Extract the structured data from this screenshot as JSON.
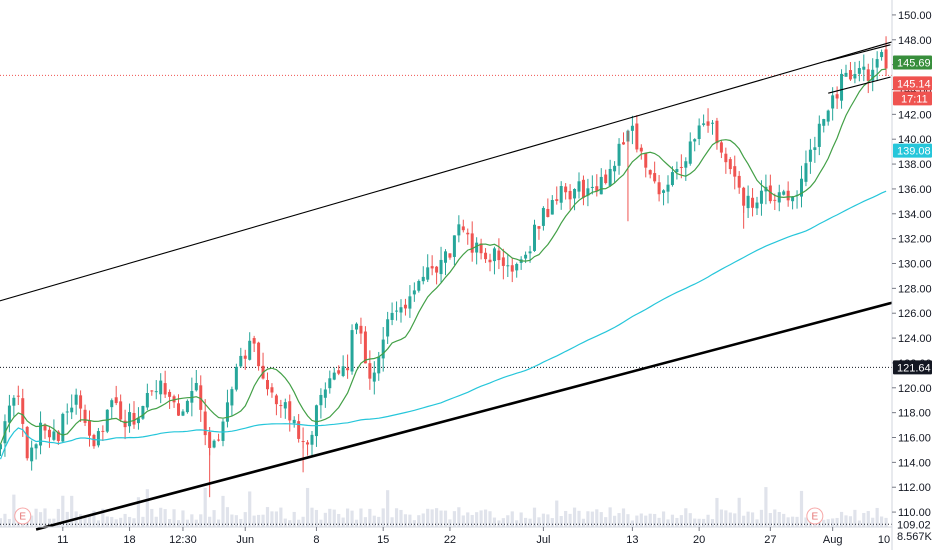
{
  "chart_data": {
    "type": "candlestick",
    "title": "",
    "xlabel": "",
    "ylabel": "",
    "ylim": [
      108.8,
      151.2
    ],
    "grid": false,
    "y_ticks": [
      110,
      112,
      114,
      116,
      118,
      120,
      122,
      124,
      126,
      128,
      130,
      132,
      134,
      136,
      138,
      140,
      142,
      144,
      146,
      148,
      150
    ],
    "y_tick_labels": [
      "110.00",
      "112.00",
      "114.00",
      "116.00",
      "118.00",
      "120.00",
      "122.00",
      "124.00",
      "126.00",
      "128.00",
      "130.00",
      "132.00",
      "134.00",
      "136.00",
      "138.00",
      "140.00",
      "142.00",
      "144.00",
      "146.00",
      "148.00",
      "150.00"
    ],
    "x_ticks": [
      {
        "label": "11",
        "bar": 14
      },
      {
        "label": "18",
        "bar": 29
      },
      {
        "label": "12:30",
        "bar": 41
      },
      {
        "label": "Jun",
        "bar": 55
      },
      {
        "label": "8",
        "bar": 71
      },
      {
        "label": "15",
        "bar": 86
      },
      {
        "label": "22",
        "bar": 101
      },
      {
        "label": "Jul",
        "bar": 122
      },
      {
        "label": "13",
        "bar": 142
      },
      {
        "label": "20",
        "bar": 157
      },
      {
        "label": "27",
        "bar": 173
      },
      {
        "label": "Aug",
        "bar": 187
      },
      {
        "label": "10",
        "bar": 202
      }
    ],
    "bars_visible": 200,
    "close_anchors": [
      [
        0,
        116.2
      ],
      [
        4,
        119.5
      ],
      [
        6,
        113.8
      ],
      [
        9,
        117.2
      ],
      [
        13,
        116.3
      ],
      [
        17,
        119.8
      ],
      [
        21,
        115.5
      ],
      [
        25,
        118.6
      ],
      [
        28,
        117.0
      ],
      [
        32,
        118.2
      ],
      [
        36,
        120.8
      ],
      [
        40,
        118.0
      ],
      [
        44,
        120.2
      ],
      [
        47,
        114.8
      ],
      [
        49,
        116.0
      ],
      [
        52,
        120.5
      ],
      [
        56,
        123.8
      ],
      [
        59,
        121.0
      ],
      [
        62,
        119.2
      ],
      [
        66,
        117.0
      ],
      [
        69,
        115.8
      ],
      [
        72,
        119.0
      ],
      [
        75,
        120.5
      ],
      [
        78,
        122.2
      ],
      [
        80,
        125.5
      ],
      [
        83,
        121.0
      ],
      [
        85,
        122.5
      ],
      [
        87,
        126.0
      ],
      [
        90,
        125.8
      ],
      [
        93,
        128.0
      ],
      [
        97,
        129.2
      ],
      [
        100,
        130.5
      ],
      [
        104,
        133.0
      ],
      [
        107,
        131.0
      ],
      [
        111,
        130.5
      ],
      [
        114,
        129.6
      ],
      [
        118,
        131.0
      ],
      [
        122,
        134.0
      ],
      [
        126,
        135.5
      ],
      [
        130,
        136.0
      ],
      [
        134,
        135.8
      ],
      [
        137,
        137.5
      ],
      [
        140,
        140.2
      ],
      [
        142,
        141.0
      ],
      [
        145,
        137.5
      ],
      [
        148,
        136.0
      ],
      [
        151,
        137.5
      ],
      [
        154,
        138.5
      ],
      [
        157,
        140.6
      ],
      [
        160,
        141.0
      ],
      [
        163,
        138.0
      ],
      [
        166,
        135.5
      ],
      [
        169,
        134.5
      ],
      [
        172,
        135.5
      ],
      [
        175,
        135.0
      ],
      [
        178,
        135.6
      ],
      [
        181,
        137.5
      ],
      [
        184,
        140.5
      ],
      [
        187,
        143.5
      ],
      [
        190,
        145.0
      ],
      [
        193,
        146.0
      ],
      [
        196,
        145.0
      ],
      [
        198,
        146.5
      ],
      [
        199,
        145.69
      ]
    ],
    "last_price": 145.69,
    "price_line_level": 145.14,
    "levels": [
      {
        "value": 145.69,
        "label": "145.69",
        "color": "#388e3c"
      },
      {
        "value": 145.14,
        "label": "145.14",
        "color": "#ef5350"
      },
      {
        "value": 139.08,
        "label": "139.08",
        "color": "#26c6da"
      },
      {
        "value": 121.64,
        "label": "121.64",
        "color": "#131722"
      },
      {
        "value": 109.02,
        "label": "109.02",
        "color": "#131722"
      },
      {
        "value": 108.9,
        "label": "8.567K",
        "color": "#131722"
      }
    ],
    "countdown": "17:11",
    "upper_channel": {
      "bar_start": -2,
      "price_start": 126.8,
      "bar_end": 202,
      "price_end": 148.0
    },
    "lower_channel": {
      "bar_start": 8,
      "price_start": 108.6,
      "bar_end": 202,
      "price_end": 127.0
    },
    "short_channel_top": {
      "bar_start": 186,
      "price_start": 146.3,
      "bar_end": 200,
      "price_end": 147.6
    },
    "short_channel_bottom": {
      "bar_start": 186,
      "price_start": 143.7,
      "bar_end": 200,
      "price_end": 145.0
    },
    "moving_averages": [
      {
        "period": 10,
        "color": "#43a047"
      },
      {
        "period": 100,
        "color": "#26c6da"
      }
    ],
    "events": [
      {
        "label": "E",
        "bar": 5
      },
      {
        "label": "E",
        "bar": 183
      }
    ],
    "colors": {
      "up": "#26a69a",
      "down": "#ef5350",
      "channel": "#000000",
      "volume": "#e0e3eb",
      "price_line": "#ef5350",
      "level_line": "#131722"
    }
  }
}
